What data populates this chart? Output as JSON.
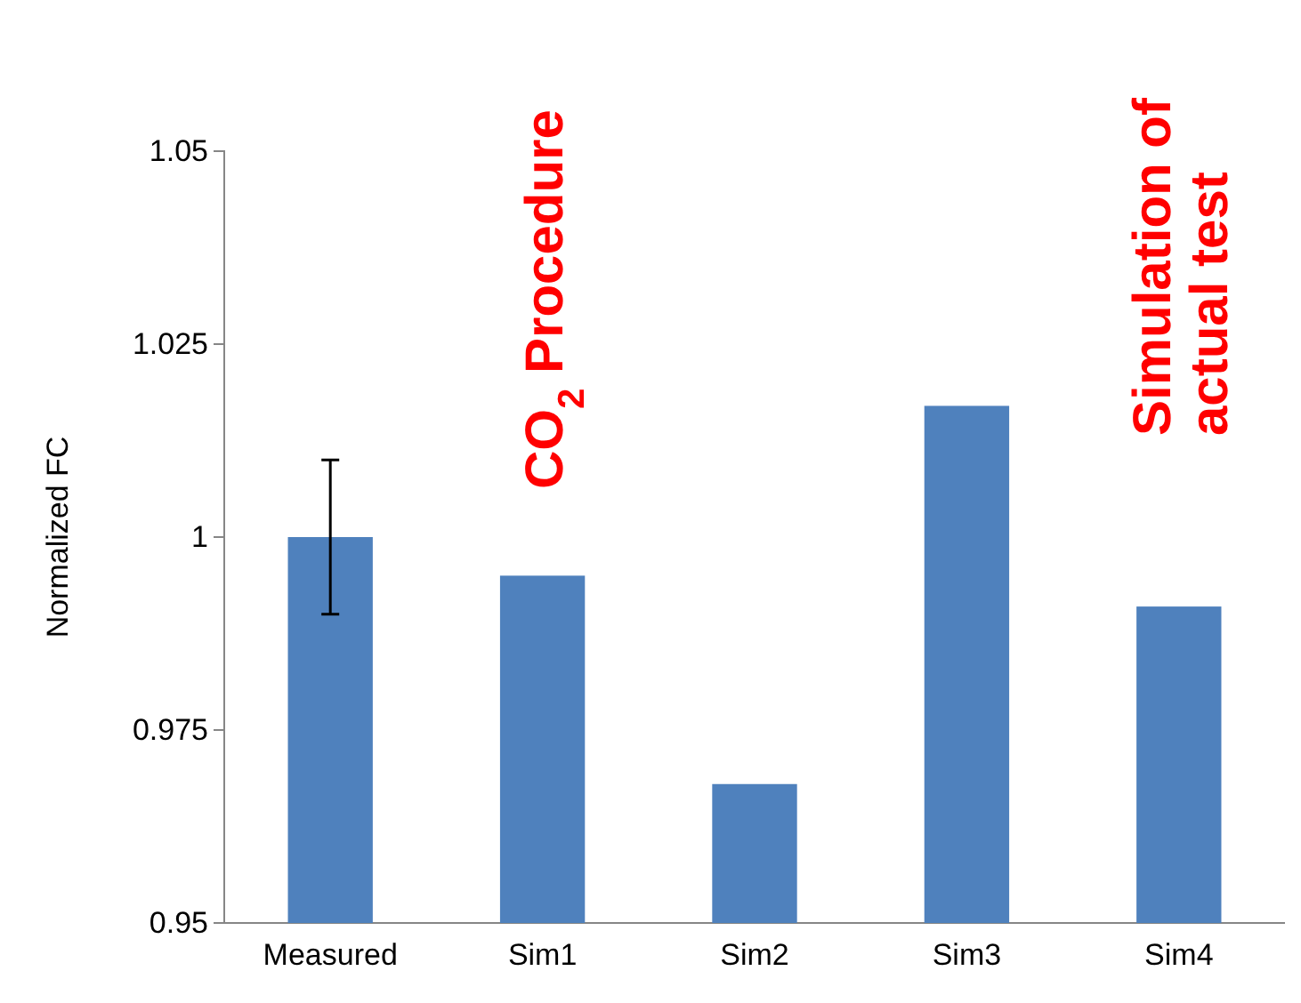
{
  "chart_data": {
    "type": "bar",
    "ylabel": "Normalized FC",
    "categories": [
      "Measured",
      "Sim1",
      "Sim2",
      "Sim3",
      "Sim4"
    ],
    "values": [
      1.0,
      0.995,
      0.968,
      1.017,
      0.991
    ],
    "errors": [
      0.01,
      null,
      null,
      null,
      null
    ],
    "color": "#4f81bd",
    "ylim": [
      0.95,
      1.05
    ],
    "yticks": [
      0.95,
      0.975,
      1,
      1.025,
      1.05
    ],
    "grid": false,
    "annotations": [
      "CO$_{2}$ Procedure",
      "Simulation of\nactual test"
    ]
  }
}
